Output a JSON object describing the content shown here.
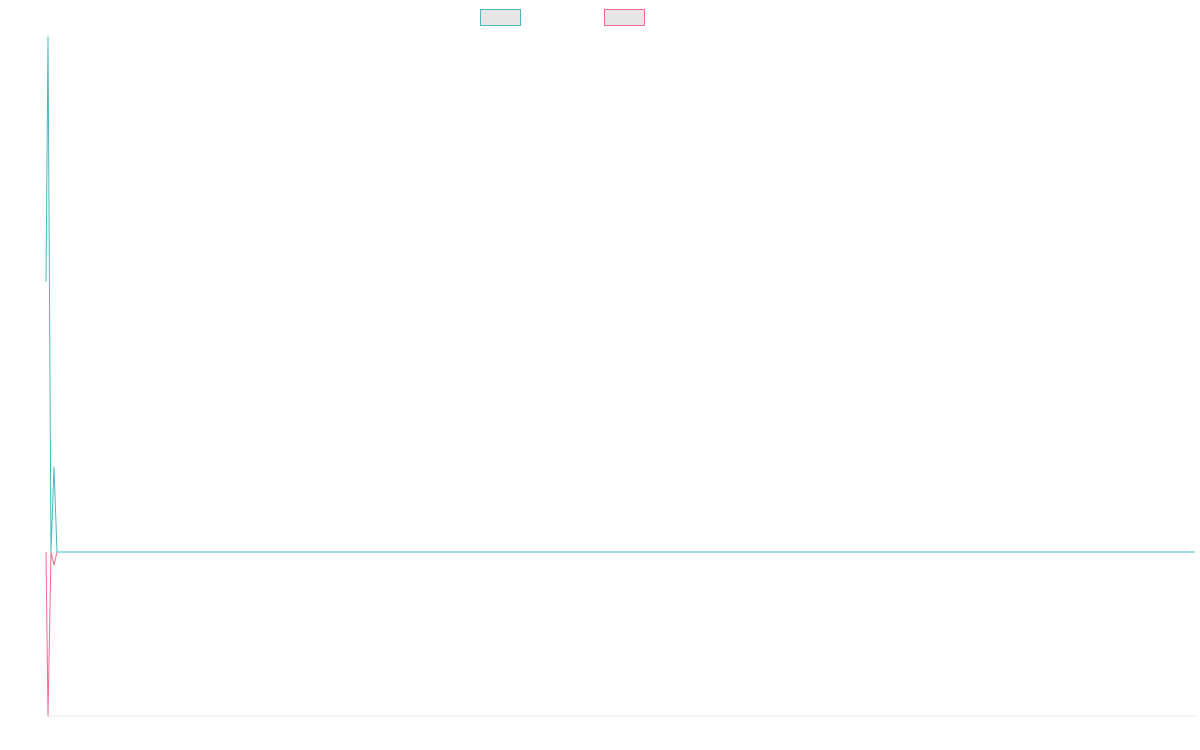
{
  "chart_data": {
    "type": "line",
    "title": "",
    "xlabel": "",
    "ylabel": "",
    "grid": false,
    "legend": "top-center",
    "ylim": [
      -60,
      200
    ],
    "x": [
      0,
      1,
      2,
      3,
      4,
      1000
    ],
    "series": [
      {
        "name": "",
        "color": "#4bb8bd",
        "values": [
          105,
          200,
          0,
          33,
          0,
          0
        ]
      },
      {
        "name": "",
        "color": "#f26a8a",
        "values": [
          0,
          -63,
          0,
          -5,
          0,
          0
        ]
      }
    ]
  }
}
